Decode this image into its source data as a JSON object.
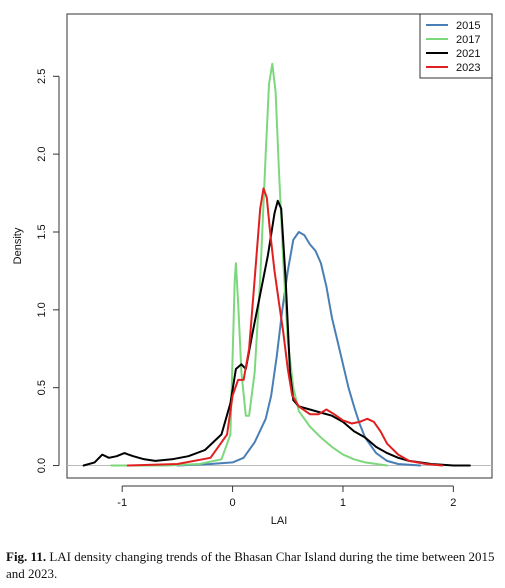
{
  "chart_data": {
    "type": "line",
    "xlabel": "LAI",
    "ylabel": "Density",
    "xlim": [
      -1.5,
      2.35
    ],
    "ylim": [
      -0.08,
      2.9
    ],
    "xticks": [
      -1,
      0,
      1,
      2
    ],
    "yticks": [
      0.0,
      0.5,
      1.0,
      1.5,
      2.0,
      2.5
    ],
    "xtick_labels": [
      "-1",
      "0",
      "1",
      "2"
    ],
    "ytick_labels": [
      "0.0",
      "0.5",
      "1.0",
      "1.5",
      "2.0",
      "2.5"
    ],
    "legend_position": "top-right",
    "grid": false,
    "series": [
      {
        "name": "2015",
        "color": "#4a7fb5",
        "points": [
          [
            -0.5,
            0.0
          ],
          [
            -0.2,
            0.01
          ],
          [
            0.0,
            0.02
          ],
          [
            0.1,
            0.05
          ],
          [
            0.2,
            0.15
          ],
          [
            0.3,
            0.3
          ],
          [
            0.35,
            0.45
          ],
          [
            0.4,
            0.7
          ],
          [
            0.45,
            1.0
          ],
          [
            0.5,
            1.25
          ],
          [
            0.55,
            1.45
          ],
          [
            0.6,
            1.5
          ],
          [
            0.65,
            1.48
          ],
          [
            0.7,
            1.42
          ],
          [
            0.75,
            1.38
          ],
          [
            0.8,
            1.3
          ],
          [
            0.85,
            1.15
          ],
          [
            0.9,
            0.95
          ],
          [
            0.95,
            0.8
          ],
          [
            1.0,
            0.65
          ],
          [
            1.05,
            0.5
          ],
          [
            1.1,
            0.38
          ],
          [
            1.15,
            0.27
          ],
          [
            1.2,
            0.18
          ],
          [
            1.3,
            0.08
          ],
          [
            1.4,
            0.03
          ],
          [
            1.5,
            0.01
          ],
          [
            1.7,
            0.0
          ]
        ]
      },
      {
        "name": "2017",
        "color": "#7dd87d",
        "points": [
          [
            -1.1,
            0.0
          ],
          [
            -0.6,
            0.0
          ],
          [
            -0.3,
            0.01
          ],
          [
            -0.1,
            0.04
          ],
          [
            -0.02,
            0.2
          ],
          [
            0.0,
            0.7
          ],
          [
            0.02,
            1.2
          ],
          [
            0.03,
            1.3
          ],
          [
            0.05,
            1.05
          ],
          [
            0.08,
            0.6
          ],
          [
            0.12,
            0.32
          ],
          [
            0.15,
            0.32
          ],
          [
            0.2,
            0.6
          ],
          [
            0.25,
            1.2
          ],
          [
            0.3,
            2.0
          ],
          [
            0.33,
            2.45
          ],
          [
            0.36,
            2.58
          ],
          [
            0.39,
            2.4
          ],
          [
            0.42,
            1.9
          ],
          [
            0.46,
            1.3
          ],
          [
            0.5,
            0.8
          ],
          [
            0.55,
            0.5
          ],
          [
            0.6,
            0.35
          ],
          [
            0.7,
            0.25
          ],
          [
            0.8,
            0.18
          ],
          [
            0.9,
            0.12
          ],
          [
            1.0,
            0.07
          ],
          [
            1.1,
            0.04
          ],
          [
            1.2,
            0.02
          ],
          [
            1.4,
            0.0
          ]
        ]
      },
      {
        "name": "2021",
        "color": "#000000",
        "points": [
          [
            -1.35,
            0.0
          ],
          [
            -1.25,
            0.02
          ],
          [
            -1.18,
            0.07
          ],
          [
            -1.12,
            0.05
          ],
          [
            -1.05,
            0.06
          ],
          [
            -0.98,
            0.08
          ],
          [
            -0.9,
            0.06
          ],
          [
            -0.8,
            0.04
          ],
          [
            -0.7,
            0.03
          ],
          [
            -0.55,
            0.04
          ],
          [
            -0.4,
            0.06
          ],
          [
            -0.25,
            0.1
          ],
          [
            -0.1,
            0.2
          ],
          [
            -0.02,
            0.4
          ],
          [
            0.03,
            0.62
          ],
          [
            0.08,
            0.65
          ],
          [
            0.12,
            0.62
          ],
          [
            0.18,
            0.85
          ],
          [
            0.25,
            1.1
          ],
          [
            0.32,
            1.35
          ],
          [
            0.38,
            1.62
          ],
          [
            0.41,
            1.7
          ],
          [
            0.44,
            1.65
          ],
          [
            0.48,
            1.2
          ],
          [
            0.52,
            0.6
          ],
          [
            0.55,
            0.42
          ],
          [
            0.6,
            0.38
          ],
          [
            0.7,
            0.36
          ],
          [
            0.8,
            0.34
          ],
          [
            0.9,
            0.32
          ],
          [
            1.0,
            0.28
          ],
          [
            1.1,
            0.22
          ],
          [
            1.2,
            0.18
          ],
          [
            1.3,
            0.12
          ],
          [
            1.4,
            0.08
          ],
          [
            1.5,
            0.05
          ],
          [
            1.6,
            0.03
          ],
          [
            1.8,
            0.01
          ],
          [
            2.0,
            0.0
          ],
          [
            2.15,
            0.0
          ]
        ]
      },
      {
        "name": "2023",
        "color": "#e02020",
        "points": [
          [
            -0.95,
            0.0
          ],
          [
            -0.5,
            0.01
          ],
          [
            -0.2,
            0.05
          ],
          [
            -0.05,
            0.2
          ],
          [
            0.0,
            0.45
          ],
          [
            0.05,
            0.55
          ],
          [
            0.1,
            0.55
          ],
          [
            0.15,
            0.75
          ],
          [
            0.2,
            1.2
          ],
          [
            0.25,
            1.65
          ],
          [
            0.28,
            1.78
          ],
          [
            0.31,
            1.72
          ],
          [
            0.34,
            1.5
          ],
          [
            0.38,
            1.25
          ],
          [
            0.42,
            1.05
          ],
          [
            0.46,
            0.85
          ],
          [
            0.5,
            0.62
          ],
          [
            0.54,
            0.45
          ],
          [
            0.6,
            0.38
          ],
          [
            0.7,
            0.33
          ],
          [
            0.78,
            0.33
          ],
          [
            0.85,
            0.36
          ],
          [
            0.92,
            0.33
          ],
          [
            1.0,
            0.29
          ],
          [
            1.08,
            0.27
          ],
          [
            1.15,
            0.28
          ],
          [
            1.22,
            0.3
          ],
          [
            1.28,
            0.28
          ],
          [
            1.34,
            0.22
          ],
          [
            1.4,
            0.14
          ],
          [
            1.5,
            0.07
          ],
          [
            1.6,
            0.03
          ],
          [
            1.75,
            0.01
          ],
          [
            1.9,
            0.0
          ]
        ]
      }
    ]
  },
  "caption": {
    "label": "Fig. 11.",
    "text": " LAI density changing trends of the Bhasan Char Island during the time between 2015 and 2023."
  }
}
